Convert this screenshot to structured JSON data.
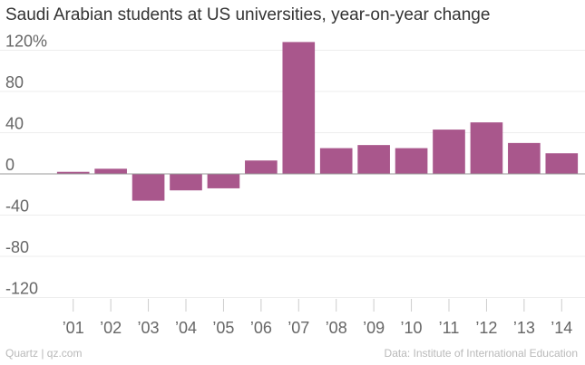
{
  "title": "Saudi Arabian students at US universities, year-on-year change",
  "footer": {
    "source_left": "Quartz | qz.com",
    "source_right": "Data: Institute of International Education"
  },
  "colors": {
    "bar": "#a9578c",
    "grid": "#eeeeee",
    "zero_line": "#999999",
    "text": "#666666"
  },
  "chart_data": {
    "type": "bar",
    "title": "Saudi Arabian students at US universities, year-on-year change",
    "xlabel": "",
    "ylabel": "",
    "categories": [
      "’01",
      "’02",
      "’03",
      "’04",
      "’05",
      "’06",
      "’07",
      "’08",
      "’09",
      "’10",
      "’11",
      "’12",
      "’13",
      "’14"
    ],
    "values": [
      2,
      5,
      -26,
      -16,
      -14,
      13,
      128,
      25,
      28,
      25,
      43,
      50,
      30,
      20
    ],
    "ylim": [
      -130,
      130
    ],
    "yticks": [
      120,
      80,
      40,
      0,
      -40,
      -80,
      -120
    ],
    "ytick_labels": [
      "120%",
      "80",
      "40",
      "0",
      "-40",
      "-80",
      "-120"
    ],
    "grid": true
  }
}
